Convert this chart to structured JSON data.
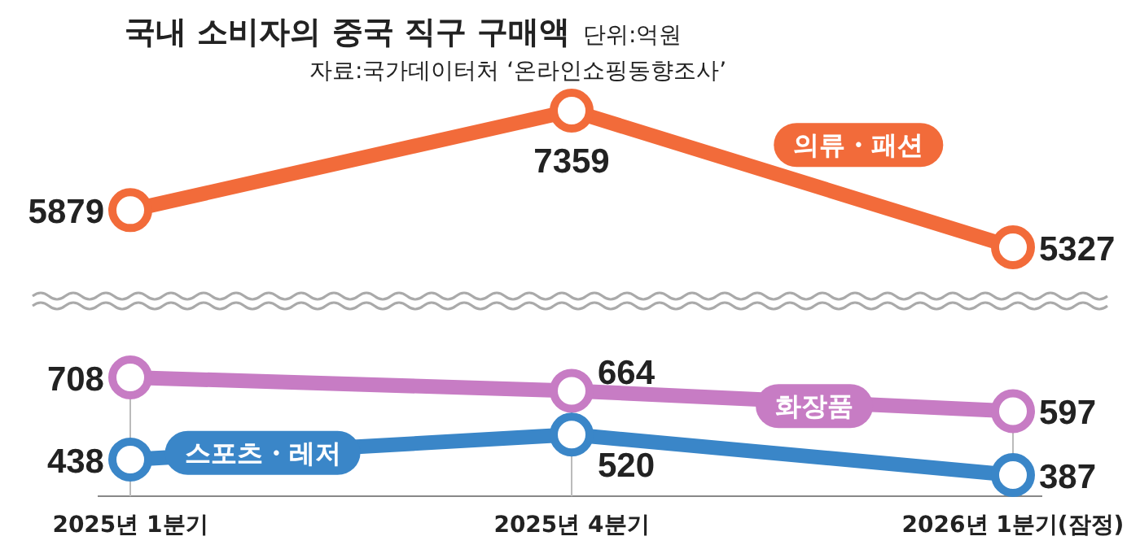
{
  "chart_data": [
    {
      "type": "line",
      "title": "국내 소비자의 중국 직구 구매액",
      "subtitle": "단위:억원",
      "annotations": [
        "자료:국가데이터처 ‘온라인쇼핑동향조사’"
      ],
      "categories": [
        null,
        null,
        null
      ],
      "series": [
        {
          "name": "의류・패션",
          "color": "#f26b3a",
          "values": [
            5879,
            7359,
            5327
          ]
        }
      ],
      "data_labels": true,
      "marker": "circle",
      "line_style": "solid"
    },
    {
      "type": "line",
      "categories": [
        "2025년 1분기",
        "2025년 4분기",
        "2026년 1분기(잠정)"
      ],
      "series": [
        {
          "name": "화장품",
          "color": "#c77cc4",
          "values": [
            708,
            664,
            597
          ]
        },
        {
          "name": "스포츠・레저",
          "color": "#3a86c8",
          "values": [
            438,
            520,
            387
          ]
        }
      ],
      "data_labels": true,
      "marker": "circle",
      "line_style": "solid",
      "grid": "x"
    }
  ]
}
